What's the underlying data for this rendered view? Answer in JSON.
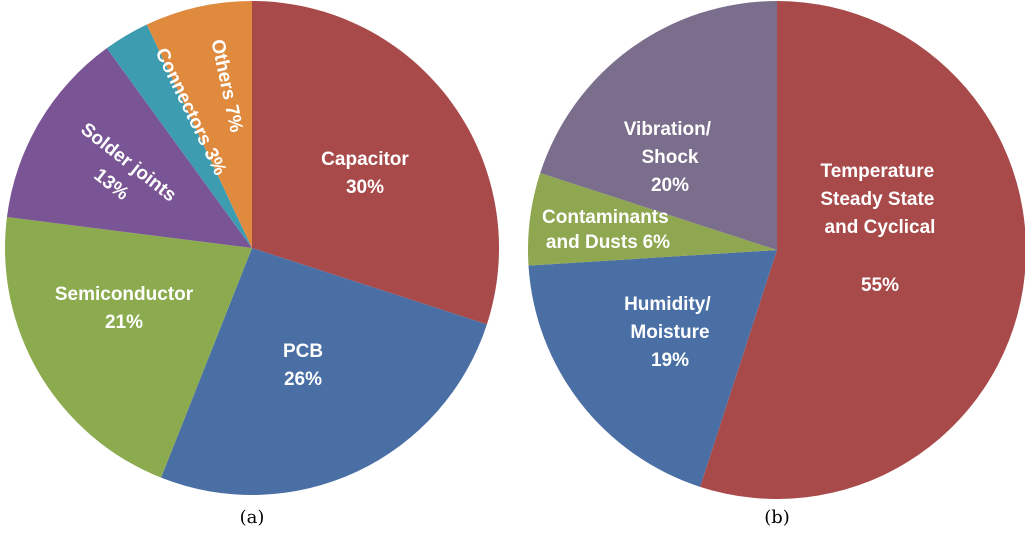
{
  "chart_data": [
    {
      "type": "pie",
      "caption": "(a)",
      "categories": [
        "Capacitor",
        "PCB",
        "Semiconductor",
        "Solder joints",
        "Connectors",
        "Others"
      ],
      "values": [
        30,
        26,
        21,
        13,
        3,
        7
      ],
      "value_labels": [
        "30%",
        "26%",
        "21%",
        "13%",
        "3%",
        "7%"
      ],
      "colors": [
        "#a84a4a",
        "#4a6fa5",
        "#8bab4e",
        "#7a5595",
        "#3e9cb0",
        "#e08a3e"
      ]
    },
    {
      "type": "pie",
      "caption": "(b)",
      "categories": [
        "Temperature Steady State and Cyclical",
        "Humidity/ Moisture",
        "Contaminants and Dusts",
        "Vibration/ Shock"
      ],
      "values": [
        55,
        19,
        6,
        20
      ],
      "value_labels": [
        "55%",
        "19%",
        "6%",
        "20%"
      ],
      "colors": [
        "#a84a4a",
        "#4a6fa5",
        "#8fa750",
        "#7a6e8c"
      ]
    }
  ]
}
